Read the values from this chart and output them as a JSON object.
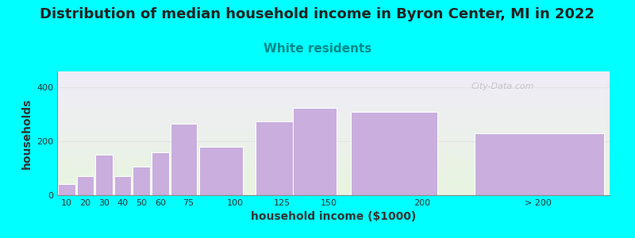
{
  "title": "Distribution of median household income in Byron Center, MI in 2022",
  "subtitle": "White residents",
  "xlabel": "household income ($1000)",
  "ylabel": "households",
  "background_color": "#00FFFF",
  "plot_bg_top": "#e8f5e0",
  "plot_bg_bottom": "#f0ecf8",
  "bar_color": "#c9aede",
  "bar_edge_color": "#ffffff",
  "bar_left_edges": [
    5,
    15,
    25,
    35,
    45,
    55,
    65,
    80,
    110,
    130,
    160,
    225
  ],
  "bar_widths": [
    10,
    10,
    10,
    10,
    10,
    10,
    15,
    25,
    25,
    25,
    50,
    75
  ],
  "bar_labels": [
    "10",
    "20",
    "30",
    "40",
    "50",
    "60",
    "75",
    "100",
    "125",
    "150",
    "200",
    "> 200"
  ],
  "values": [
    40,
    70,
    150,
    70,
    105,
    160,
    265,
    180,
    275,
    325,
    310,
    230
  ],
  "xlim": [
    5,
    300
  ],
  "ylim": [
    0,
    460
  ],
  "yticks": [
    0,
    200,
    400
  ],
  "xtick_positions": [
    10,
    20,
    30,
    40,
    50,
    60,
    75,
    100,
    125,
    150,
    200,
    262
  ],
  "xtick_labels": [
    "10",
    "20",
    "30",
    "40",
    "50",
    "60",
    "75",
    "100",
    "125",
    "150",
    "200",
    "> 200"
  ],
  "title_fontsize": 13,
  "subtitle_fontsize": 11,
  "subtitle_color": "#008888",
  "axis_label_fontsize": 10,
  "tick_fontsize": 8,
  "watermark_text": "City-Data.com",
  "watermark_color": "#bbbbbb"
}
